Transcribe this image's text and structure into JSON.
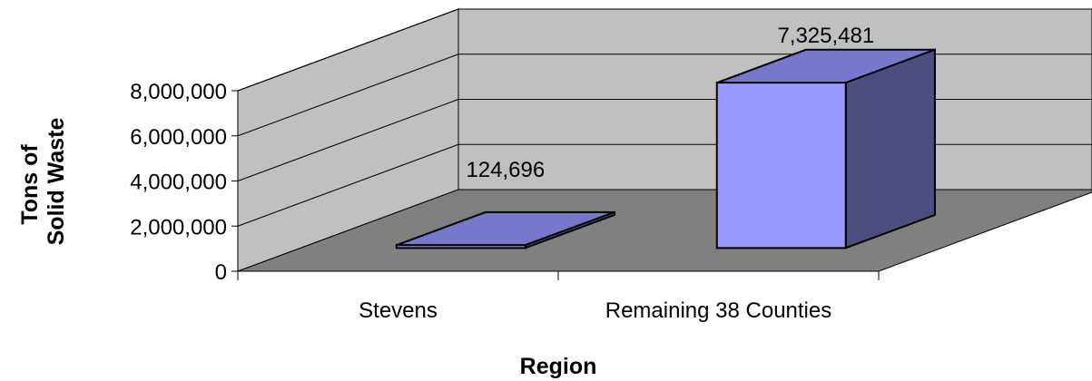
{
  "chart_data": {
    "type": "bar",
    "style": "3d-column",
    "categories": [
      "Stevens",
      "Remaining 38 Counties"
    ],
    "values": [
      124696,
      7325481
    ],
    "data_labels": [
      "124,696",
      "7,325,481"
    ],
    "xlabel": "Region",
    "ylabel_lines": [
      "Tons of",
      "Solid Waste"
    ],
    "ylim": [
      0,
      8000000
    ],
    "yticks": [
      0,
      2000000,
      4000000,
      6000000,
      8000000
    ],
    "ytick_labels": [
      "0",
      "2,000,000",
      "4,000,000",
      "6,000,000",
      "8,000,000"
    ],
    "grid": true,
    "legend": "none",
    "colors": {
      "bar_front": "#9999ff",
      "bar_top": "#7777cc",
      "bar_side": "#4d4d80",
      "wall": "#c0c0c0",
      "floor": "#808080"
    }
  }
}
